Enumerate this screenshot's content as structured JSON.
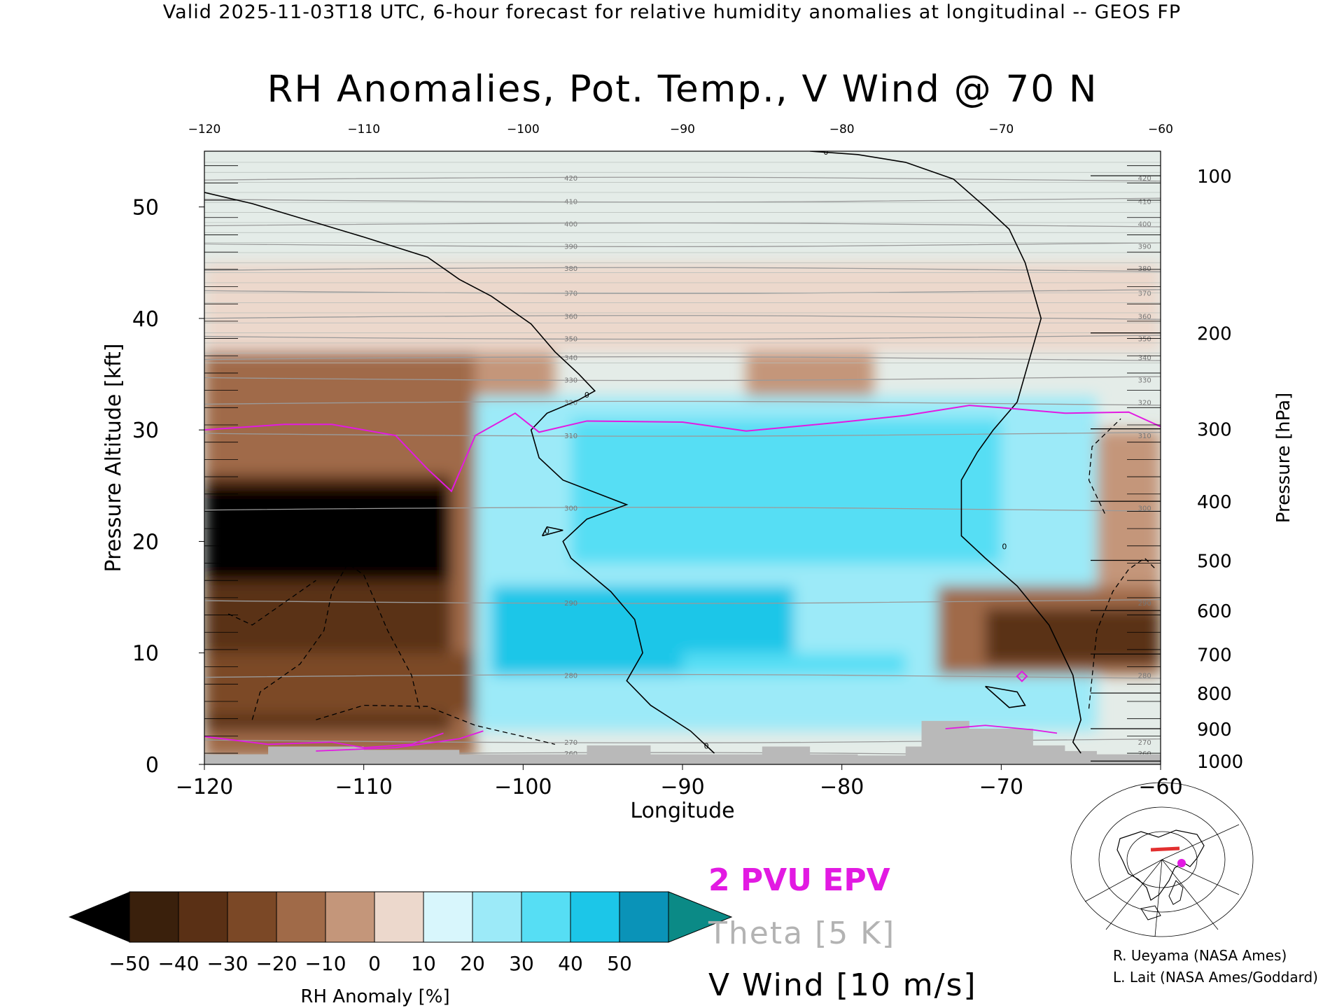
{
  "valid_line": "Valid 2025-11-03T18 UTC, 6-hour forecast for relative humidity anomalies at longitudinal -- GEOS FP",
  "chart_data": {
    "type": "heatmap",
    "title": "RH Anomalies, Pot. Temp., V Wind @ 70 N",
    "xlabel": "Longitude",
    "ylabel_left": "Pressure Altitude [kft]",
    "ylabel_right": "Pressure [hPa]",
    "xlim": [
      -120,
      -60
    ],
    "ylim": [
      0,
      55
    ],
    "x_ticks": [
      -120,
      -110,
      -100,
      -90,
      -80,
      -70,
      -60
    ],
    "x_tick_labels": [
      "−120",
      "−110",
      "−100",
      "−90",
      "−80",
      "−70",
      "−60"
    ],
    "y_ticks": [
      0,
      10,
      20,
      30,
      40,
      50
    ],
    "right_ticks": [
      {
        "label": "100",
        "kft": 52.8
      },
      {
        "label": "200",
        "kft": 38.7
      },
      {
        "label": "300",
        "kft": 30.1
      },
      {
        "label": "400",
        "kft": 23.6
      },
      {
        "label": "500",
        "kft": 18.3
      },
      {
        "label": "600",
        "kft": 13.8
      },
      {
        "label": "700",
        "kft": 9.9
      },
      {
        "label": "800",
        "kft": 6.4
      },
      {
        "label": "900",
        "kft": 3.2
      },
      {
        "label": "1000",
        "kft": 0.3
      }
    ],
    "anomaly_regions": [
      {
        "anomaly": -15,
        "x0": -120,
        "x1": -103,
        "y0": 0.5,
        "y1": 37
      },
      {
        "anomaly": -40,
        "x0": -120,
        "x1": -104.5,
        "y0": 3,
        "y1": 26
      },
      {
        "anomaly": -55,
        "x0": -120,
        "x1": -104.5,
        "y0": 16.5,
        "y1": 25
      },
      {
        "anomaly": -30,
        "x0": -120,
        "x1": -103,
        "y0": 4.5,
        "y1": 10
      },
      {
        "anomaly": -5,
        "x0": -103,
        "x1": -98,
        "y0": 33,
        "y1": 37
      },
      {
        "anomaly": -8,
        "x0": -86,
        "x1": -78,
        "y0": 33,
        "y1": 37
      },
      {
        "anomaly": 8,
        "x0": -120,
        "x1": -60,
        "y0": 37,
        "y1": 45
      },
      {
        "anomaly": 25,
        "x0": -103,
        "x1": -64,
        "y0": 3,
        "y1": 33
      },
      {
        "anomaly": 32,
        "x0": -97,
        "x1": -70,
        "y0": 18,
        "y1": 31
      },
      {
        "anomaly": 45,
        "x0": -102,
        "x1": -83,
        "y0": 8,
        "y1": 16
      },
      {
        "anomaly": 38,
        "x0": -90,
        "x1": -76,
        "y0": 8,
        "y1": 10
      },
      {
        "anomaly": -20,
        "x0": -74,
        "x1": -60,
        "y0": 8,
        "y1": 16
      },
      {
        "anomaly": -38,
        "x0": -71,
        "x1": -60,
        "y0": 9,
        "y1": 14
      },
      {
        "anomaly": 28,
        "x0": -73,
        "x1": -64,
        "y0": 3,
        "y1": 7
      },
      {
        "anomaly": -10,
        "x0": -64,
        "x1": -60,
        "y0": 16,
        "y1": 30
      }
    ],
    "theta_contours": [
      {
        "level": 420,
        "kft": 52.6
      },
      {
        "level": 410,
        "kft": 50.5
      },
      {
        "level": 400,
        "kft": 48.5
      },
      {
        "level": 390,
        "kft": 46.5
      },
      {
        "level": 380,
        "kft": 44.5
      },
      {
        "level": 370,
        "kft": 42.3
      },
      {
        "level": 360,
        "kft": 40.2
      },
      {
        "level": 350,
        "kft": 38.2
      },
      {
        "level": 340,
        "kft": 36.5
      },
      {
        "level": 330,
        "kft": 34.5
      },
      {
        "level": 320,
        "kft": 32.5
      },
      {
        "level": 310,
        "kft": 29.5
      },
      {
        "level": 300,
        "kft": 23.0
      },
      {
        "level": 290,
        "kft": 14.5
      },
      {
        "level": 280,
        "kft": 8.0
      },
      {
        "level": 270,
        "kft": 2.0
      },
      {
        "level": 260,
        "kft": 1.0
      }
    ],
    "epv_2pvu_line": {
      "x": [
        -120,
        -115,
        -112,
        -110,
        -108,
        -106,
        -104.5,
        -103,
        -100.5,
        -99,
        -96,
        -90,
        -86,
        -80,
        -76,
        -72,
        -70,
        -66,
        -62,
        -60
      ],
      "y": [
        30,
        30.5,
        30.5,
        30,
        29.5,
        26.5,
        24.5,
        29.5,
        31.5,
        29.8,
        30.8,
        30.7,
        29.9,
        30.7,
        31.3,
        32.2,
        32.0,
        31.5,
        31.6,
        30.3
      ]
    },
    "vwind_zero_lines": [
      {
        "x": [
          -120,
          -117,
          -110,
          -106,
          -104,
          -102,
          -99.5,
          -98,
          -96.5,
          -95.5,
          -96.5,
          -98.5,
          -99.5,
          -99,
          -97.5,
          -93.5,
          -96,
          -97.5,
          -97,
          -94.5,
          -93,
          -92.5,
          -93.5,
          -92,
          -89.5,
          -88
        ],
        "y": [
          51.3,
          50.3,
          47.3,
          45.5,
          43.5,
          42,
          39.5,
          37,
          35,
          33.5,
          32.7,
          31.5,
          30,
          27.5,
          25.5,
          23.3,
          22,
          20,
          18.5,
          15.5,
          13,
          10,
          7.5,
          5.3,
          3,
          1
        ]
      },
      {
        "x": [
          -82,
          -79,
          -76,
          -73,
          -71,
          -69.5,
          -68.5,
          -67.5,
          -68.5,
          -69,
          -70.5,
          -71.5,
          -72.5,
          -72.5,
          -71,
          -69,
          -67,
          -65.5,
          -65,
          -65.5,
          -65
        ],
        "y": [
          55,
          54.7,
          54,
          52.5,
          50,
          48,
          45,
          40,
          35,
          32.5,
          30,
          28,
          25.5,
          20.5,
          18.5,
          16,
          12.5,
          8,
          4,
          2,
          1
        ]
      },
      {
        "x": [
          -98.8,
          -97.5,
          -98.5,
          -98.8
        ],
        "y": [
          20.5,
          21,
          21.3,
          20.5
        ]
      },
      {
        "x": [
          -71,
          -69,
          -68.5,
          -69.5,
          -71
        ],
        "y": [
          7,
          6.5,
          5.3,
          5.1,
          7
        ]
      }
    ],
    "color_bar": {
      "label": "RH Anomaly [%]",
      "ticks": [
        "−50",
        "−40",
        "−30",
        "−20",
        "−10",
        "0",
        "10",
        "20",
        "30",
        "40",
        "50"
      ],
      "under_color": "#000000",
      "over_color": "#0b8a86",
      "colors": [
        "#3a200c",
        "#5a3015",
        "#7b4826",
        "#a06a48",
        "#c4967a",
        "#ecd8cc",
        "#d8f6fc",
        "#9ceaf8",
        "#56def4",
        "#1cc6e8",
        "#0a93b8"
      ]
    },
    "colors": {
      "theta": "#9a9a9a",
      "epv": "#e21ae2",
      "vwind": "#000000",
      "topography": "#b9b9b9"
    }
  },
  "legend": {
    "epv": "2 PVU EPV",
    "theta": "Theta [5 K]",
    "vwind": "V Wind [10 m/s]"
  },
  "credits": {
    "line1": "R. Ueyama (NASA Ames)",
    "line2": "L. Lait (NASA Ames/Goddard)"
  }
}
